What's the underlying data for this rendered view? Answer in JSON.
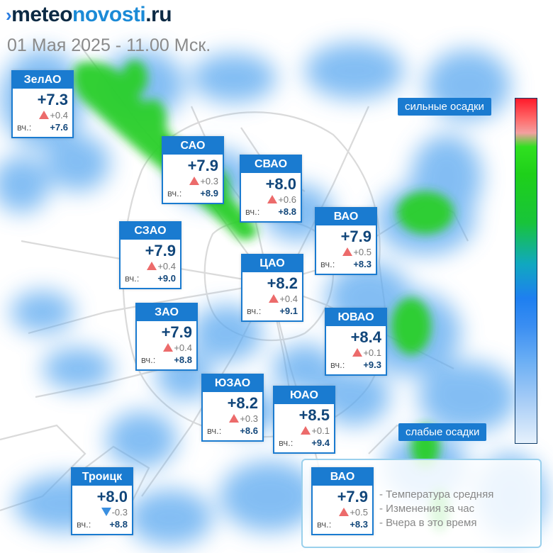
{
  "header": {
    "logo_mark": "›",
    "logo_part1": "meteo",
    "logo_part2": "novosti",
    "logo_part3": ".ru",
    "subtitle": "01 Мая 2025 - 11.00 Мск."
  },
  "yesterday_label": "вч.:",
  "districts": [
    {
      "id": "zelao",
      "name": "ЗелАО",
      "temp": "+7.3",
      "delta": "+0.4",
      "trend": "up",
      "yesterday": "+7.6"
    },
    {
      "id": "sao",
      "name": "САО",
      "temp": "+7.9",
      "delta": "+0.3",
      "trend": "up",
      "yesterday": "+8.9"
    },
    {
      "id": "svao",
      "name": "СВАО",
      "temp": "+8.0",
      "delta": "+0.6",
      "trend": "up",
      "yesterday": "+8.8"
    },
    {
      "id": "vao",
      "name": "ВАО",
      "temp": "+7.9",
      "delta": "+0.5",
      "trend": "up",
      "yesterday": "+8.3"
    },
    {
      "id": "szao",
      "name": "СЗАО",
      "temp": "+7.9",
      "delta": "+0.4",
      "trend": "up",
      "yesterday": "+9.0"
    },
    {
      "id": "tsao",
      "name": "ЦАО",
      "temp": "+8.2",
      "delta": "+0.4",
      "trend": "up",
      "yesterday": "+9.1"
    },
    {
      "id": "zao",
      "name": "ЗАО",
      "temp": "+7.9",
      "delta": "+0.4",
      "trend": "up",
      "yesterday": "+8.8"
    },
    {
      "id": "yuvao",
      "name": "ЮВАО",
      "temp": "+8.4",
      "delta": "+0.1",
      "trend": "up",
      "yesterday": "+9.3"
    },
    {
      "id": "yuzao",
      "name": "ЮЗАО",
      "temp": "+8.2",
      "delta": "+0.3",
      "trend": "up",
      "yesterday": "+8.6"
    },
    {
      "id": "yuao",
      "name": "ЮАО",
      "temp": "+8.5",
      "delta": "+0.1",
      "trend": "up",
      "yesterday": "+9.4"
    },
    {
      "id": "troitsk",
      "name": "Троицк",
      "temp": "+8.0",
      "delta": "-0.3",
      "trend": "down",
      "yesterday": "+8.8"
    }
  ],
  "scale": {
    "top_label": "сильные осадки",
    "bottom_label": "слабые осадки"
  },
  "legend": {
    "sample": {
      "name": "ВАО",
      "temp": "+7.9",
      "delta": "+0.5",
      "trend": "up",
      "yesterday": "+8.3"
    },
    "line_temp": "- Температура средняя",
    "line_delta": "- Изменения за час",
    "line_yesterday": "- Вчера в это время"
  },
  "colors": {
    "accent": "#1a7bd0",
    "up_arrow": "#ec6b6b",
    "down_arrow": "#3a8fe0",
    "precip_light": "#5aa8f0",
    "precip_heavy": "#2ccf2c"
  }
}
